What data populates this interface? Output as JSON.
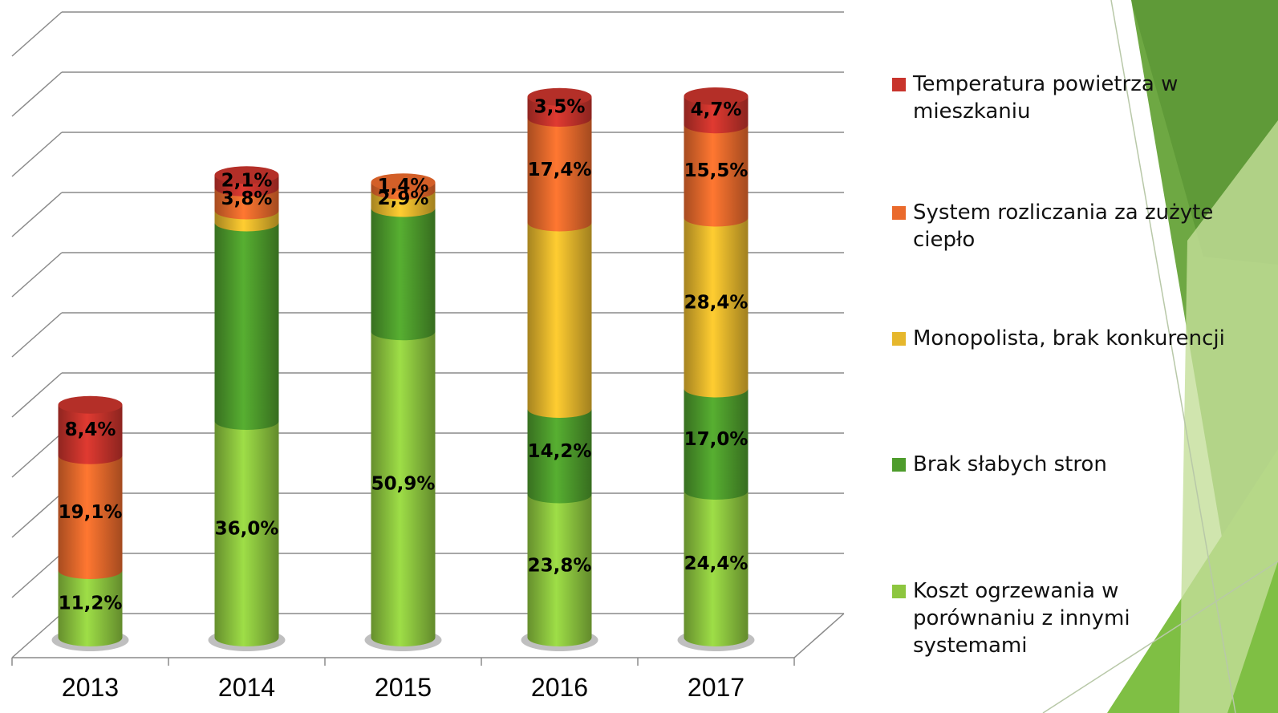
{
  "chart_data": {
    "type": "stacked-cylinder",
    "categories": [
      "2013",
      "2014",
      "2015",
      "2016",
      "2017"
    ],
    "series": [
      {
        "name": "Koszt ogrzewania w porównaniu z innymi systemami",
        "color": "#8dc63f",
        "values": [
          11.2,
          36.0,
          50.9,
          23.8,
          24.4
        ],
        "value_labels": [
          "11,2%",
          "36,0%",
          "50,9%",
          "23,8%",
          "24,4%"
        ]
      },
      {
        "name": "Brak słabych stron",
        "color": "#4e9c2c",
        "values": [
          null,
          33,
          20.5,
          14.2,
          17.0
        ],
        "value_labels": [
          null,
          null,
          null,
          "14,2%",
          "17,0%"
        ]
      },
      {
        "name": "Monopolista, brak konkurencji",
        "color": "#e6b72c",
        "values": [
          null,
          2,
          2.9,
          31,
          28.4
        ],
        "value_labels": [
          null,
          null,
          "2,9%",
          null,
          "28,4%"
        ]
      },
      {
        "name": "System rozliczania za zużyte ciepło",
        "color": "#ea6a2c",
        "values": [
          19.1,
          3.8,
          1.4,
          17.4,
          15.5
        ],
        "value_labels": [
          "19,1%",
          "3,8%",
          "1,4%",
          "17,4%",
          "15,5%"
        ]
      },
      {
        "name": "Temperatura powietrza w mieszkaniu",
        "color": "#c8342c",
        "values": [
          8.4,
          2.1,
          null,
          3.5,
          4.7
        ],
        "value_labels": [
          "8,4%",
          "2,1%",
          null,
          "3,5%",
          "4,7%"
        ]
      }
    ],
    "ylim": [
      0,
      100
    ],
    "yticks": [
      0,
      10,
      20,
      30,
      40,
      50,
      60,
      70,
      80,
      90,
      100
    ],
    "grid": true,
    "legend": "right"
  }
}
